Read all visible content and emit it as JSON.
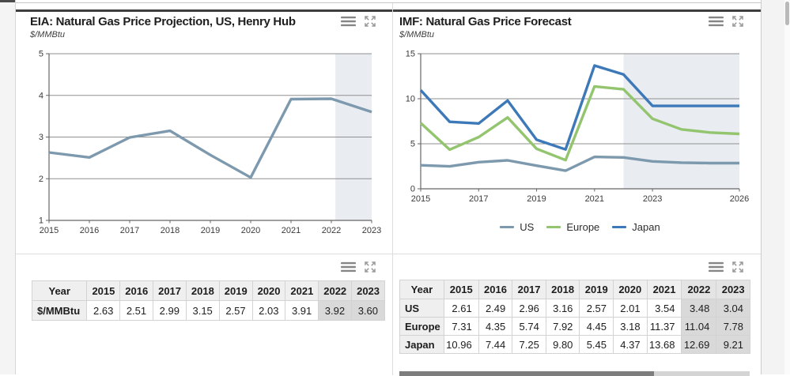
{
  "panels": {
    "eia_chart": {
      "title": "EIA: Natural Gas Price Projection, US, Henry Hub",
      "subtitle": "$/MMBtu"
    },
    "imf_chart": {
      "title": "IMF: Natural Gas Price Forecast",
      "subtitle": "$/MMBtu"
    }
  },
  "icons": {
    "menu": "menu-icon",
    "expand": "expand-icon"
  },
  "colors": {
    "us_line": "#7d99ad",
    "europe_line": "#93c46e",
    "japan_line": "#3d79b8",
    "forecast_band": "#e9edf2",
    "forecast_cell": "#d9d9d9",
    "gridline": "#8f8f8f",
    "axis": "#666666"
  },
  "chart_data": [
    {
      "type": "line",
      "title": "EIA: Natural Gas Price Projection, US, Henry Hub",
      "ylabel": "$/MMBtu",
      "x": [
        2015,
        2016,
        2017,
        2018,
        2019,
        2020,
        2021,
        2022,
        2023
      ],
      "series": [
        {
          "name": "Henry Hub",
          "color": "#7d99ad",
          "values": [
            2.63,
            2.51,
            2.99,
            3.15,
            2.57,
            2.03,
            3.91,
            3.92,
            3.6
          ]
        }
      ],
      "ylim": [
        1,
        5
      ],
      "yticks": [
        1,
        2,
        3,
        4,
        5
      ],
      "xticks": [
        2015,
        2016,
        2017,
        2018,
        2019,
        2020,
        2021,
        2022,
        2023
      ],
      "forecast_from": 2022.1,
      "grid": true,
      "legend": "none"
    },
    {
      "type": "line",
      "title": "IMF: Natural Gas Price Forecast",
      "ylabel": "$/MMBtu",
      "x": [
        2015,
        2016,
        2017,
        2018,
        2019,
        2020,
        2021,
        2022,
        2023,
        2024,
        2025,
        2026
      ],
      "series": [
        {
          "name": "US",
          "color": "#7d99ad",
          "values": [
            2.61,
            2.49,
            2.96,
            3.16,
            2.57,
            2.01,
            3.54,
            3.48,
            3.04,
            2.9,
            2.85,
            2.85
          ]
        },
        {
          "name": "Europe",
          "color": "#93c46e",
          "values": [
            7.31,
            4.35,
            5.74,
            7.92,
            4.45,
            3.18,
            11.37,
            11.04,
            7.78,
            6.6,
            6.25,
            6.1
          ]
        },
        {
          "name": "Japan",
          "color": "#3d79b8",
          "values": [
            10.96,
            7.44,
            7.25,
            9.8,
            5.45,
            4.37,
            13.68,
            12.69,
            9.21,
            9.2,
            9.2,
            9.2
          ]
        }
      ],
      "ylim": [
        0,
        15
      ],
      "yticks": [
        0,
        5,
        10,
        15
      ],
      "xticks": [
        2015,
        2017,
        2019,
        2021,
        2023,
        2026
      ],
      "forecast_from": 2022,
      "grid": true,
      "legend": "bottom"
    }
  ],
  "tables": {
    "eia": {
      "corner": "Year",
      "years": [
        "2015",
        "2016",
        "2017",
        "2018",
        "2019",
        "2020",
        "2021",
        "2022",
        "2023"
      ],
      "rows": [
        {
          "label": "$/MMBtu",
          "values": [
            "2.63",
            "2.51",
            "2.99",
            "3.15",
            "2.57",
            "2.03",
            "3.91",
            "3.92",
            "3.60"
          ]
        }
      ],
      "forecast_years": [
        "2022",
        "2023"
      ]
    },
    "imf": {
      "corner": "Year",
      "years": [
        "2015",
        "2016",
        "2017",
        "2018",
        "2019",
        "2020",
        "2021",
        "2022",
        "2023"
      ],
      "rows": [
        {
          "label": "US",
          "values": [
            "2.61",
            "2.49",
            "2.96",
            "3.16",
            "2.57",
            "2.01",
            "3.54",
            "3.48",
            "3.04"
          ]
        },
        {
          "label": "Europe",
          "values": [
            "7.31",
            "4.35",
            "5.74",
            "7.92",
            "4.45",
            "3.18",
            "11.37",
            "11.04",
            "7.78"
          ]
        },
        {
          "label": "Japan",
          "values": [
            "10.96",
            "7.44",
            "7.25",
            "9.80",
            "5.45",
            "4.37",
            "13.68",
            "12.69",
            "9.21"
          ]
        }
      ],
      "forecast_years": [
        "2022",
        "2023"
      ]
    }
  }
}
